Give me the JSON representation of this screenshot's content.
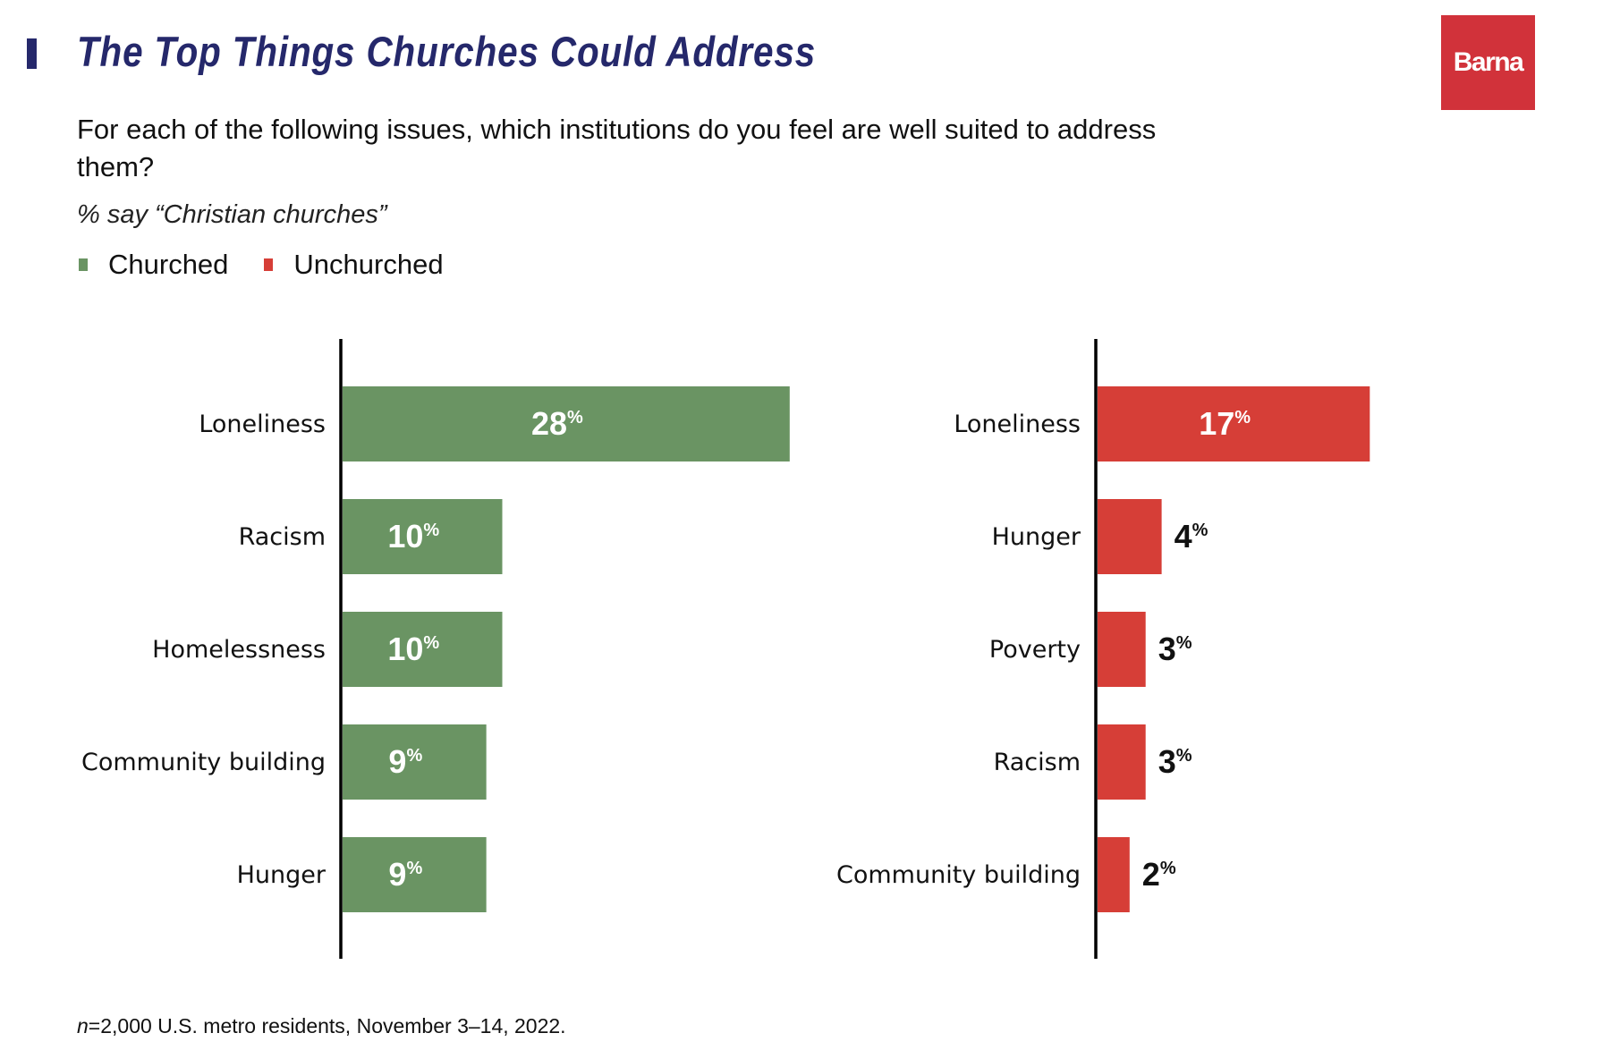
{
  "header": {
    "title": "The Top Things Churches Could Address",
    "logo_text": "Barna",
    "question": "For each of the following issues, which institutions do you feel are well suited to address them?",
    "subtitle": "% say “Christian churches”"
  },
  "legend": [
    {
      "label": "Churched",
      "color": "#6a9463"
    },
    {
      "label": "Unchurched",
      "color": "#d63e37"
    }
  ],
  "footnote": {
    "n_label": "n",
    "text": "=2,000 U.S. metro residents, November 3–14, 2022."
  },
  "colors": {
    "title": "#25286b",
    "logo": "#d1323a",
    "churched": "#6a9463",
    "unchurched": "#d63e37"
  },
  "chart_data": [
    {
      "type": "bar",
      "orientation": "horizontal",
      "series_name": "Churched",
      "color": "#6a9463",
      "categories": [
        "Loneliness",
        "Racism",
        "Homelessness",
        "Community building",
        "Hunger"
      ],
      "values": [
        28,
        10,
        10,
        9,
        9
      ],
      "labels": [
        "28",
        "10",
        "10",
        "9",
        "9"
      ],
      "unit": "%",
      "xlim": [
        0,
        28
      ]
    },
    {
      "type": "bar",
      "orientation": "horizontal",
      "series_name": "Unchurched",
      "color": "#d63e37",
      "categories": [
        "Loneliness",
        "Hunger",
        "Poverty",
        "Racism",
        "Community building"
      ],
      "values": [
        17,
        4,
        3,
        3,
        2
      ],
      "labels": [
        "17",
        "4",
        "3",
        "3",
        "2"
      ],
      "unit": "%",
      "xlim": [
        0,
        17
      ]
    }
  ]
}
